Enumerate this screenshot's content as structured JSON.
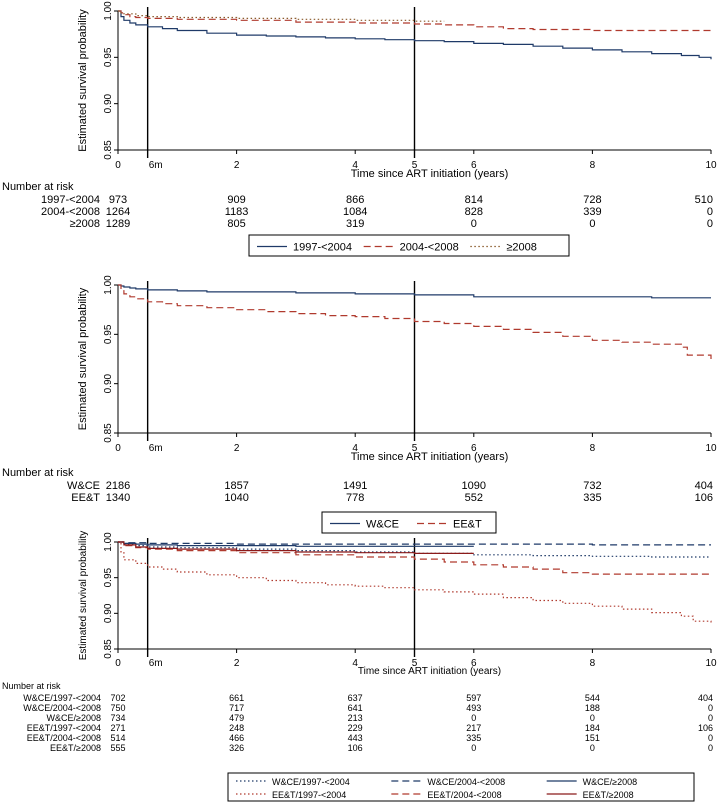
{
  "chart_data": [
    {
      "type": "line",
      "title": "",
      "xlabel": "Time since ART initiation (years)",
      "ylabel": "Estimated survival probability",
      "xlim": [
        0,
        10
      ],
      "ylim": [
        0.85,
        1.0
      ],
      "x_ticks": [
        "0",
        "2",
        "4",
        "6",
        "8",
        "10"
      ],
      "x_marker_labels": [
        "6m",
        "5"
      ],
      "y_ticks": [
        "0.85",
        "0.90",
        "0.95",
        "1.00"
      ],
      "vertical_lines": [
        0.5,
        5
      ],
      "series": [
        {
          "name": "1997-<2004",
          "color": "#1f3a68",
          "style": "solid",
          "x": [
            0,
            0.05,
            0.1,
            0.2,
            0.3,
            0.5,
            0.75,
            1.0,
            1.5,
            2.0,
            2.5,
            3.0,
            3.5,
            4.0,
            4.5,
            5.0,
            5.5,
            6.0,
            6.5,
            7.0,
            7.5,
            8.0,
            8.5,
            9.0,
            9.5,
            9.8,
            10.0
          ],
          "y": [
            1.0,
            0.994,
            0.99,
            0.987,
            0.985,
            0.983,
            0.981,
            0.979,
            0.976,
            0.974,
            0.973,
            0.972,
            0.971,
            0.97,
            0.969,
            0.968,
            0.967,
            0.965,
            0.964,
            0.962,
            0.96,
            0.958,
            0.956,
            0.954,
            0.952,
            0.95,
            0.948
          ]
        },
        {
          "name": "2004-<2008",
          "color": "#b03a2e",
          "style": "dashed",
          "x": [
            0,
            0.05,
            0.1,
            0.2,
            0.3,
            0.5,
            1.0,
            2.0,
            3.0,
            4.0,
            5.0,
            5.5,
            6.0,
            6.5,
            7.0,
            8.0,
            10.0
          ],
          "y": [
            1.0,
            0.998,
            0.996,
            0.994,
            0.993,
            0.992,
            0.991,
            0.99,
            0.988,
            0.987,
            0.986,
            0.985,
            0.983,
            0.981,
            0.98,
            0.979,
            0.979
          ]
        },
        {
          "name": "≥2008",
          "color": "#8a5a2b",
          "style": "dotted",
          "x": [
            0,
            0.05,
            0.1,
            0.3,
            0.5,
            1.0,
            2.0,
            3.0,
            4.0,
            5.0,
            5.5
          ],
          "y": [
            1.0,
            0.998,
            0.997,
            0.995,
            0.994,
            0.993,
            0.992,
            0.991,
            0.99,
            0.989,
            0.989
          ]
        }
      ],
      "risk_table": {
        "header": "Number at risk",
        "times": [
          0,
          2,
          4,
          6,
          8,
          10
        ],
        "rows": [
          {
            "label": "1997-<2004",
            "counts": [
              "973",
              "909",
              "866",
              "814",
              "728",
              "510"
            ]
          },
          {
            "label": "2004-<2008",
            "counts": [
              "1264",
              "1183",
              "1084",
              "828",
              "339",
              "0"
            ]
          },
          {
            "label": "≥2008",
            "counts": [
              "1289",
              "805",
              "319",
              "0",
              "0",
              "0"
            ]
          }
        ]
      }
    },
    {
      "type": "line",
      "title": "",
      "xlabel": "Time since ART initiation (years)",
      "ylabel": "Estimated survival probability",
      "xlim": [
        0,
        10
      ],
      "ylim": [
        0.85,
        1.0
      ],
      "x_ticks": [
        "0",
        "2",
        "4",
        "6",
        "8",
        "10"
      ],
      "x_marker_labels": [
        "6m",
        "5"
      ],
      "y_ticks": [
        "0.85",
        "0.90",
        "0.95",
        "1.00"
      ],
      "vertical_lines": [
        0.5,
        5
      ],
      "series": [
        {
          "name": "W&CE",
          "color": "#1f3a68",
          "style": "solid",
          "x": [
            0,
            0.05,
            0.1,
            0.2,
            0.3,
            0.5,
            1.0,
            1.5,
            2.0,
            3.0,
            4.0,
            5.0,
            5.5,
            6.0,
            7.0,
            8.0,
            9.0,
            10.0
          ],
          "y": [
            1.0,
            0.999,
            0.998,
            0.997,
            0.996,
            0.995,
            0.994,
            0.993,
            0.993,
            0.992,
            0.991,
            0.99,
            0.99,
            0.988,
            0.988,
            0.988,
            0.987,
            0.987
          ]
        },
        {
          "name": "EE&T",
          "color": "#b03a2e",
          "style": "dashed",
          "x": [
            0,
            0.05,
            0.1,
            0.2,
            0.3,
            0.5,
            0.75,
            1.0,
            1.5,
            2.0,
            2.5,
            3.0,
            3.5,
            4.0,
            4.5,
            5.0,
            5.5,
            6.0,
            6.5,
            7.0,
            7.5,
            8.0,
            8.5,
            9.0,
            9.5,
            9.6,
            9.9,
            10.0
          ],
          "y": [
            1.0,
            0.995,
            0.991,
            0.988,
            0.986,
            0.983,
            0.981,
            0.979,
            0.977,
            0.975,
            0.973,
            0.971,
            0.969,
            0.968,
            0.966,
            0.963,
            0.961,
            0.958,
            0.955,
            0.952,
            0.948,
            0.944,
            0.942,
            0.94,
            0.937,
            0.929,
            0.929,
            0.922
          ]
        }
      ],
      "risk_table": {
        "header": "Number at risk",
        "times": [
          0,
          2,
          4,
          6,
          8,
          10
        ],
        "rows": [
          {
            "label": "W&CE",
            "counts": [
              "2186",
              "1857",
              "1491",
              "1090",
              "732",
              "404"
            ]
          },
          {
            "label": "EE&T",
            "counts": [
              "1340",
              "1040",
              "778",
              "552",
              "335",
              "106"
            ]
          }
        ]
      }
    },
    {
      "type": "line",
      "title": "",
      "xlabel": "Time since ART initiation (years)",
      "ylabel": "Estimated survival probability",
      "xlim": [
        0,
        10
      ],
      "ylim": [
        0.85,
        1.0
      ],
      "x_ticks": [
        "0",
        "2",
        "4",
        "6",
        "8",
        "10"
      ],
      "x_marker_labels": [
        "6m",
        "5"
      ],
      "y_ticks": [
        "0.85",
        "0.90",
        "0.95",
        "1.00"
      ],
      "vertical_lines": [
        0.5,
        5
      ],
      "series": [
        {
          "name": "W&CE/1997-<2004",
          "color": "#1f3a68",
          "style": "dotted",
          "x": [
            0,
            0.1,
            0.3,
            0.5,
            1.0,
            2.0,
            3.0,
            4.0,
            5.0,
            6.0,
            7.0,
            8.0,
            9.0,
            10.0
          ],
          "y": [
            1.0,
            0.997,
            0.995,
            0.993,
            0.992,
            0.99,
            0.988,
            0.986,
            0.984,
            0.982,
            0.981,
            0.98,
            0.979,
            0.979
          ]
        },
        {
          "name": "W&CE/2004-<2008",
          "color": "#1f3a68",
          "style": "dashed",
          "x": [
            0,
            0.1,
            0.3,
            0.5,
            1.0,
            2.0,
            4.0,
            6.0,
            8.0,
            10.0
          ],
          "y": [
            1.0,
            0.999,
            0.999,
            0.998,
            0.998,
            0.997,
            0.997,
            0.997,
            0.996,
            0.996
          ]
        },
        {
          "name": "W&CE/≥2008",
          "color": "#1f3a68",
          "style": "solid",
          "x": [
            0,
            0.1,
            0.3,
            0.5,
            1.0,
            2.0,
            3.0,
            4.0,
            5.0,
            6.0
          ],
          "y": [
            1.0,
            0.998,
            0.997,
            0.996,
            0.995,
            0.995,
            0.994,
            0.994,
            0.994,
            0.994
          ]
        },
        {
          "name": "EE&T/1997-<2004",
          "color": "#b03a2e",
          "style": "dotted",
          "x": [
            0,
            0.05,
            0.1,
            0.3,
            0.5,
            0.75,
            1.0,
            1.5,
            2.0,
            2.5,
            3.0,
            3.5,
            4.0,
            4.5,
            5.0,
            5.5,
            6.0,
            6.5,
            7.0,
            7.5,
            8.0,
            8.5,
            9.0,
            9.5,
            9.7,
            10.0
          ],
          "y": [
            1.0,
            0.985,
            0.975,
            0.97,
            0.965,
            0.962,
            0.958,
            0.954,
            0.95,
            0.946,
            0.943,
            0.94,
            0.938,
            0.936,
            0.933,
            0.93,
            0.927,
            0.922,
            0.918,
            0.914,
            0.91,
            0.906,
            0.901,
            0.896,
            0.889,
            0.886
          ]
        },
        {
          "name": "EE&T/2004-<2008",
          "color": "#b03a2e",
          "style": "dashed",
          "x": [
            0,
            0.1,
            0.3,
            0.5,
            1.0,
            2.0,
            3.0,
            4.0,
            5.0,
            5.5,
            6.0,
            6.5,
            7.0,
            7.5,
            8.0,
            9.0,
            10.0
          ],
          "y": [
            1.0,
            0.995,
            0.992,
            0.99,
            0.988,
            0.985,
            0.982,
            0.979,
            0.976,
            0.972,
            0.968,
            0.965,
            0.962,
            0.957,
            0.955,
            0.955,
            0.955
          ]
        },
        {
          "name": "EE&T/≥2008",
          "color": "#8b1a1a",
          "style": "solid",
          "x": [
            0,
            0.1,
            0.3,
            0.5,
            1.0,
            2.0,
            3.0,
            4.0,
            5.0,
            6.0
          ],
          "y": [
            1.0,
            0.996,
            0.993,
            0.991,
            0.99,
            0.988,
            0.986,
            0.985,
            0.984,
            0.984
          ]
        }
      ],
      "risk_table": {
        "header": "Number at risk",
        "times": [
          0,
          2,
          4,
          6,
          8,
          10
        ],
        "rows": [
          {
            "label": "W&CE/1997-<2004",
            "counts": [
              "702",
              "661",
              "637",
              "597",
              "544",
              "404"
            ]
          },
          {
            "label": "W&CE/2004-<2008",
            "counts": [
              "750",
              "717",
              "641",
              "493",
              "188",
              "0"
            ]
          },
          {
            "label": "W&CE/≥2008",
            "counts": [
              "734",
              "479",
              "213",
              "0",
              "0",
              "0"
            ]
          },
          {
            "label": "EE&T/1997-<2004",
            "counts": [
              "271",
              "248",
              "229",
              "217",
              "184",
              "106"
            ]
          },
          {
            "label": "EE&T/2004-<2008",
            "counts": [
              "514",
              "466",
              "443",
              "335",
              "151",
              "0"
            ]
          },
          {
            "label": "EE&T/≥2008",
            "counts": [
              "555",
              "326",
              "106",
              "0",
              "0",
              "0"
            ]
          }
        ]
      }
    }
  ]
}
